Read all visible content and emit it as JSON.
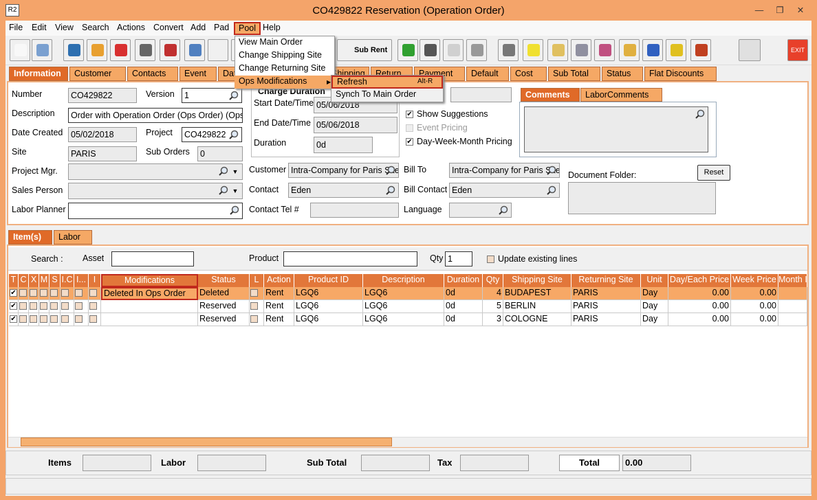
{
  "window": {
    "icon": "R2",
    "title": "CO429822 Reservation (Operation Order)"
  },
  "menu": [
    "File",
    "Edit",
    "View",
    "Search",
    "Actions",
    "Convert",
    "Add",
    "Pad",
    "Pool",
    "Help"
  ],
  "pool_menu": {
    "items": [
      "View Main Order",
      "Change Shipping Site",
      "Change Returning Site",
      "Ops Modifications"
    ],
    "submenu": [
      {
        "label": "Refresh",
        "shortcut": "Alt-R"
      },
      {
        "label": "Synch To Main Order"
      }
    ]
  },
  "toolbar": {
    "sub_rent": "Sub Rent",
    "exit": "EXIT"
  },
  "tabs": [
    "Information",
    "Customer",
    "Contacts",
    "Event",
    "Dates",
    "Shipping",
    "Return",
    "Payment",
    "Default",
    "Cost",
    "Sub Total",
    "Status",
    "Flat Discounts"
  ],
  "info": {
    "charge_duration": "Charge Duration",
    "fields": [
      {
        "label": "Number",
        "value": "CO429822"
      },
      {
        "label": "Version",
        "value": "1"
      },
      {
        "label": "Description",
        "value": "Order with Operation Order (Ops Order) (Ops C"
      },
      {
        "label": "Date Created",
        "value": "05/02/2018"
      },
      {
        "label": "Project",
        "value": "CO429822"
      },
      {
        "label": "Site",
        "value": "PARIS"
      },
      {
        "label": "Sub Orders",
        "value": "0"
      },
      {
        "label": "Project Mgr."
      },
      {
        "label": "Sales Person"
      },
      {
        "label": "Labor Planner"
      },
      {
        "label": "Start Date/Time",
        "value": "05/06/2018"
      },
      {
        "label": "End Date/Time",
        "value": "05/06/2018"
      },
      {
        "label": "Duration",
        "value": "0d"
      },
      {
        "label": "Customer",
        "value": "Intra-Company for Paris Site"
      },
      {
        "label": "Contact",
        "value": "Eden"
      },
      {
        "label": "Contact Tel #"
      },
      {
        "label": "Bill To",
        "value": "Intra-Company for Paris Site"
      },
      {
        "label": "Bill Contact",
        "value": "Eden"
      },
      {
        "label": "Language"
      }
    ],
    "options": [
      {
        "label": "Show Suggestions",
        "checked": true
      },
      {
        "label": "Event Pricing",
        "checked": false
      },
      {
        "label": "Day-Week-Month Pricing",
        "checked": true
      }
    ],
    "comment_tabs": [
      "Comments",
      "LaborComments"
    ],
    "document_folder": "Document Folder:",
    "reset": "Reset"
  },
  "lower_tabs": [
    "Item(s)",
    "Labor"
  ],
  "search": {
    "search": "Search :",
    "asset": "Asset",
    "product": "Product",
    "qty": "Qty",
    "qty_value": "1",
    "update": "Update existing lines"
  },
  "table": {
    "columns": [
      "T",
      "C",
      "X",
      "M",
      "S",
      "I.C",
      "I...",
      "I",
      "Modifications",
      "Status",
      "L",
      "Action",
      "Product ID",
      "Description",
      "Duration",
      "Qty",
      "Shipping Site",
      "Returning Site",
      "Unit",
      "Day/Each Price",
      "Week Price",
      "Month I"
    ],
    "rows": [
      {
        "modifications": "Deleted In Ops Order",
        "status": "Deleted",
        "action": "Rent",
        "product_id": "LGQ6",
        "description": "LGQ6",
        "duration": "0d",
        "qty": 4,
        "shipping_site": "BUDAPEST",
        "returning_site": "PARIS",
        "unit": "Day",
        "day_price": "0.00",
        "week_price": "0.00"
      },
      {
        "modifications": null,
        "status": "Reserved",
        "action": "Rent",
        "product_id": "LGQ6",
        "description": "LGQ6",
        "duration": "0d",
        "qty": 5,
        "shipping_site": "BERLIN",
        "returning_site": "PARIS",
        "unit": "Day",
        "day_price": "0.00",
        "week_price": "0.00"
      },
      {
        "modifications": null,
        "status": "Reserved",
        "action": "Rent",
        "product_id": "LGQ6",
        "description": "LGQ6",
        "duration": "0d",
        "qty": 3,
        "shipping_site": "COLOGNE",
        "returning_site": "PARIS",
        "unit": "Day",
        "day_price": "0.00",
        "week_price": "0.00"
      }
    ]
  },
  "footer": {
    "items": "Items",
    "labor": "Labor",
    "sub_total": "Sub Total",
    "tax": "Tax",
    "total": "Total",
    "total_value": "0.00"
  }
}
